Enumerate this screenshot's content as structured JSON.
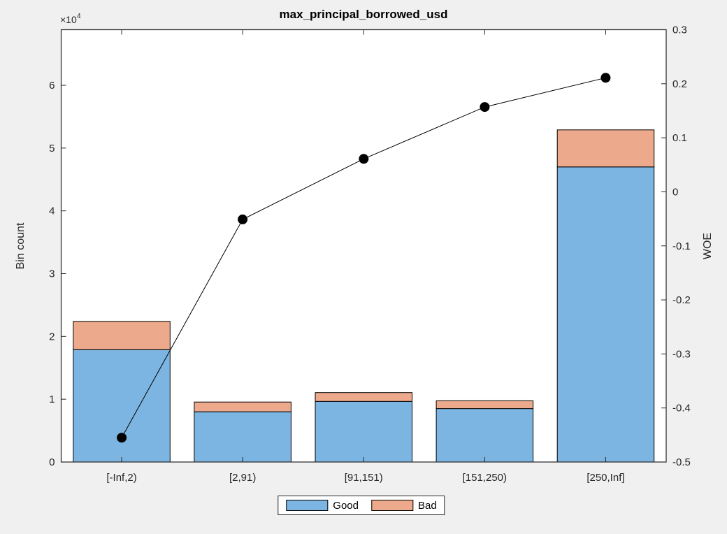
{
  "figure": {
    "title": "max_principal_borrowed_usd",
    "background_color": "#f0f0f0",
    "plot_background_color": "#ffffff",
    "axis_color": "#262626"
  },
  "chart_data": [
    {
      "type": "bar",
      "stacked": true,
      "title": "max_principal_borrowed_usd",
      "categories": [
        "[-Inf,2)",
        "[2,91)",
        "[91,151)",
        "[151,250)",
        "[250,Inf]"
      ],
      "series": [
        {
          "name": "Good",
          "color": "#7cb5e1",
          "values": [
            17900,
            8000,
            9650,
            8500,
            47000
          ]
        },
        {
          "name": "Bad",
          "color": "#eda98b",
          "values": [
            4500,
            1550,
            1400,
            1250,
            5900
          ]
        }
      ],
      "ylabel": "Bin count",
      "y_multiplier_base": "×10",
      "y_multiplier_exp": "4",
      "ylim": [
        0,
        68850
      ],
      "yticks": [
        0,
        10000,
        20000,
        30000,
        40000,
        50000,
        60000
      ],
      "ytick_labels": [
        "0",
        "1",
        "2",
        "3",
        "4",
        "5",
        "6"
      ],
      "grid": false,
      "legend_position": "south-outside",
      "bar_edge_color": "#000000"
    },
    {
      "type": "line",
      "name": "WOE",
      "categories": [
        "[-Inf,2)",
        "[2,91)",
        "[91,151)",
        "[151,250)",
        "[250,Inf]"
      ],
      "values": [
        -0.455,
        -0.051,
        0.061,
        0.157,
        0.211
      ],
      "ylabel": "WOE",
      "ylim": [
        -0.5,
        0.3
      ],
      "yticks": [
        0.3,
        0.2,
        0.1,
        0,
        -0.1,
        -0.2,
        -0.3,
        -0.4,
        -0.5
      ],
      "ytick_labels": [
        "0.3",
        "0.2",
        "0.1",
        "0",
        "-0.1",
        "-0.2",
        "-0.3",
        "-0.4",
        "-0.5"
      ],
      "color": "#000000",
      "marker": "filled-circle"
    }
  ],
  "legend": {
    "items": [
      {
        "label": "Good",
        "color": "#7cb5e1"
      },
      {
        "label": "Bad",
        "color": "#eda98b"
      }
    ]
  }
}
